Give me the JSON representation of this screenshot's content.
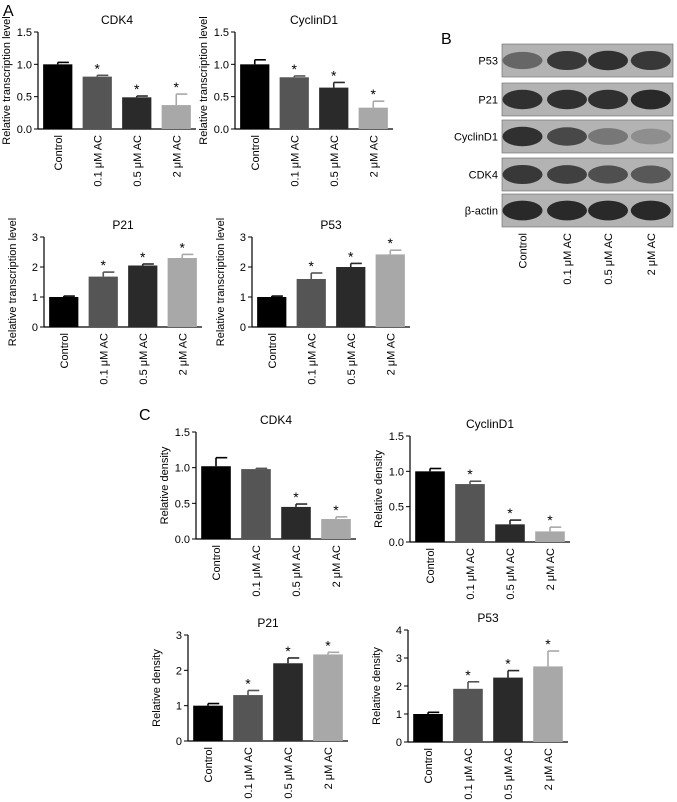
{
  "panels": {
    "A": {
      "label": "A"
    },
    "B": {
      "label": "B"
    },
    "C": {
      "label": "C"
    }
  },
  "colors": {
    "bars": [
      "#000000",
      "#555555",
      "#2a2a2a",
      "#a8a8a8"
    ]
  },
  "blot": {
    "rows": [
      "P53",
      "P21",
      "CyclinD1",
      "CDK4",
      "β-actin"
    ],
    "lanes": [
      "Control",
      "0.1 μM AC",
      "0.5 μM AC",
      "2 μM AC"
    ]
  },
  "chart_data": [
    {
      "type": "bar",
      "panel": "A",
      "title": "CDK4",
      "ylabel": "Relative transcription level",
      "categories": [
        "Control",
        "0.1 μM AC",
        "0.5 μM AC",
        "2 μM AC"
      ],
      "values": [
        1.0,
        0.81,
        0.49,
        0.37
      ],
      "errors": [
        0.03,
        0.02,
        0.02,
        0.17
      ],
      "significant": [
        "",
        "*",
        "*",
        "*"
      ],
      "ylim": [
        0,
        1.5
      ],
      "yticks": [
        "0.0",
        "0.5",
        "1.0",
        "1.5"
      ]
    },
    {
      "type": "bar",
      "panel": "A",
      "title": "CyclinD1",
      "ylabel": "Relative transcription level",
      "categories": [
        "Control",
        "0.1 μM AC",
        "0.5 μM AC",
        "2 μM AC"
      ],
      "values": [
        1.0,
        0.8,
        0.64,
        0.33
      ],
      "errors": [
        0.07,
        0.02,
        0.08,
        0.1
      ],
      "significant": [
        "",
        "*",
        "*",
        "*"
      ],
      "ylim": [
        0,
        1.5
      ],
      "yticks": [
        "0.0",
        "0.5",
        "1.0",
        "1.5"
      ]
    },
    {
      "type": "bar",
      "panel": "A",
      "title": "P21",
      "ylabel": "Relative transcription level",
      "categories": [
        "Control",
        "0.1 μM AC",
        "0.5 μM AC",
        "2 μM AC"
      ],
      "values": [
        1.0,
        1.68,
        2.05,
        2.3
      ],
      "errors": [
        0.03,
        0.15,
        0.05,
        0.12
      ],
      "significant": [
        "",
        "*",
        "*",
        "*"
      ],
      "ylim": [
        0,
        3
      ],
      "yticks": [
        "0",
        "1",
        "2",
        "3"
      ]
    },
    {
      "type": "bar",
      "panel": "A",
      "title": "P53",
      "ylabel": "Relative transcription level",
      "categories": [
        "Control",
        "0.1 μM AC",
        "0.5 μM AC",
        "2 μM AC"
      ],
      "values": [
        1.0,
        1.6,
        2.0,
        2.42
      ],
      "errors": [
        0.03,
        0.2,
        0.12,
        0.14
      ],
      "significant": [
        "",
        "*",
        "*",
        "*"
      ],
      "ylim": [
        0,
        3
      ],
      "yticks": [
        "0",
        "1",
        "2",
        "3"
      ]
    },
    {
      "type": "bar",
      "panel": "C",
      "title": "CDK4",
      "ylabel": "Relative density",
      "categories": [
        "Control",
        "0.1 μM AC",
        "0.5 μM AC",
        "2 μM AC"
      ],
      "values": [
        1.02,
        0.98,
        0.45,
        0.28
      ],
      "errors": [
        0.12,
        0.01,
        0.04,
        0.03
      ],
      "significant": [
        "",
        "",
        "*",
        "*"
      ],
      "ylim": [
        0,
        1.5
      ],
      "yticks": [
        "0.0",
        "0.5",
        "1.0",
        "1.5"
      ]
    },
    {
      "type": "bar",
      "panel": "C",
      "title": "CyclinD1",
      "ylabel": "Relative density",
      "categories": [
        "Control",
        "0.1 μM AC",
        "0.5 μM AC",
        "2 μM AC"
      ],
      "values": [
        1.0,
        0.82,
        0.25,
        0.15
      ],
      "errors": [
        0.04,
        0.04,
        0.06,
        0.06
      ],
      "significant": [
        "",
        "*",
        "*",
        "*"
      ],
      "ylim": [
        0,
        1.5
      ],
      "yticks": [
        "0.0",
        "0.5",
        "1.0",
        "1.5"
      ]
    },
    {
      "type": "bar",
      "panel": "C",
      "title": "P21",
      "ylabel": "Relative density",
      "categories": [
        "Control",
        "0.1 μM AC",
        "0.5 μM AC",
        "2 μM AC"
      ],
      "values": [
        1.0,
        1.3,
        2.2,
        2.45
      ],
      "errors": [
        0.06,
        0.13,
        0.15,
        0.06
      ],
      "significant": [
        "",
        "*",
        "*",
        "*"
      ],
      "ylim": [
        0,
        3
      ],
      "yticks": [
        "0",
        "1",
        "2",
        "3"
      ]
    },
    {
      "type": "bar",
      "panel": "C",
      "title": "P53",
      "ylabel": "Relative density",
      "categories": [
        "Control",
        "0.1 μM AC",
        "0.5 μM AC",
        "2 μM AC"
      ],
      "values": [
        1.0,
        1.9,
        2.3,
        2.7
      ],
      "errors": [
        0.06,
        0.25,
        0.25,
        0.55
      ],
      "significant": [
        "",
        "*",
        "*",
        "*"
      ],
      "ylim": [
        0,
        4
      ],
      "yticks": [
        "0",
        "1",
        "2",
        "3",
        "4"
      ]
    }
  ]
}
